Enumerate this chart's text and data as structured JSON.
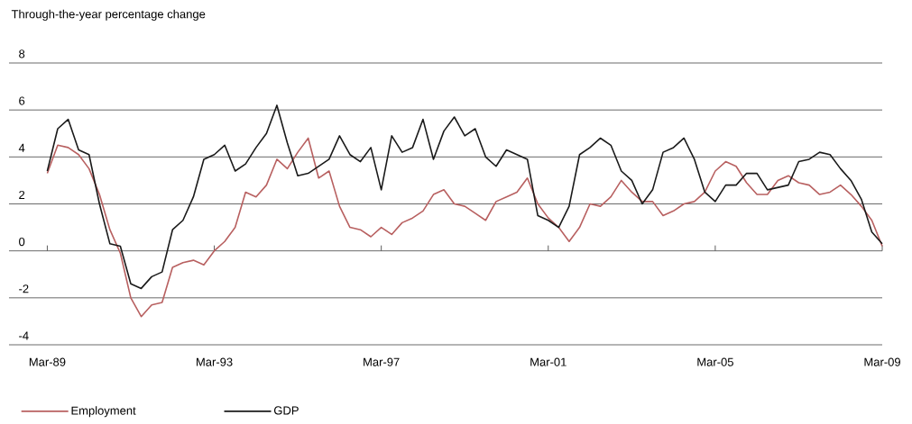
{
  "chart_data": {
    "type": "line",
    "ylabel": "Through-the-year percentage change",
    "x": [
      "1989-03",
      "1989-06",
      "1989-09",
      "1989-12",
      "1990-03",
      "1990-06",
      "1990-09",
      "1990-12",
      "1991-03",
      "1991-06",
      "1991-09",
      "1991-12",
      "1992-03",
      "1992-06",
      "1992-09",
      "1992-12",
      "1993-03",
      "1993-06",
      "1993-09",
      "1993-12",
      "1994-03",
      "1994-06",
      "1994-09",
      "1994-12",
      "1995-03",
      "1995-06",
      "1995-09",
      "1995-12",
      "1996-03",
      "1996-06",
      "1996-09",
      "1996-12",
      "1997-03",
      "1997-06",
      "1997-09",
      "1997-12",
      "1998-03",
      "1998-06",
      "1998-09",
      "1998-12",
      "1999-03",
      "1999-06",
      "1999-09",
      "1999-12",
      "2000-03",
      "2000-06",
      "2000-09",
      "2000-12",
      "2001-03",
      "2001-06",
      "2001-09",
      "2001-12",
      "2002-03",
      "2002-06",
      "2002-09",
      "2002-12",
      "2003-03",
      "2003-06",
      "2003-09",
      "2003-12",
      "2004-03",
      "2004-06",
      "2004-09",
      "2004-12",
      "2005-03",
      "2005-06",
      "2005-09",
      "2005-12",
      "2006-03",
      "2006-06",
      "2006-09",
      "2006-12",
      "2007-03",
      "2007-06",
      "2007-09",
      "2007-12",
      "2008-03",
      "2008-06",
      "2008-09",
      "2008-12",
      "2009-03"
    ],
    "series": [
      {
        "name": "Employment",
        "color": "#b86060",
        "values": [
          3.3,
          4.5,
          4.4,
          4.1,
          3.5,
          2.4,
          0.9,
          -0.1,
          -2.0,
          -2.8,
          -2.3,
          -2.2,
          -0.7,
          -0.5,
          -0.4,
          -0.6,
          0.0,
          0.4,
          1.0,
          2.5,
          2.3,
          2.8,
          3.9,
          3.5,
          4.2,
          4.8,
          3.1,
          3.4,
          1.9,
          1.0,
          0.9,
          0.6,
          1.0,
          0.7,
          1.2,
          1.4,
          1.7,
          2.4,
          2.6,
          2.0,
          1.9,
          1.6,
          1.3,
          2.1,
          2.3,
          2.5,
          3.1,
          2.0,
          1.4,
          1.0,
          0.4,
          1.0,
          2.0,
          1.9,
          2.3,
          3.0,
          2.5,
          2.1,
          2.1,
          1.5,
          1.7,
          2.0,
          2.1,
          2.5,
          3.4,
          3.8,
          3.6,
          2.9,
          2.4,
          2.4,
          3.0,
          3.2,
          2.9,
          2.8,
          2.4,
          2.5,
          2.8,
          2.4,
          1.9,
          1.3,
          0.2
        ]
      },
      {
        "name": "GDP",
        "color": "#1a1a1a",
        "values": [
          3.4,
          5.2,
          5.6,
          4.3,
          4.1,
          2.0,
          0.3,
          0.2,
          -1.4,
          -1.6,
          -1.1,
          -0.9,
          0.9,
          1.3,
          2.3,
          3.9,
          4.1,
          4.5,
          3.4,
          3.7,
          4.4,
          5.0,
          6.2,
          4.6,
          3.2,
          3.3,
          3.6,
          3.9,
          4.9,
          4.1,
          3.8,
          4.4,
          2.6,
          4.9,
          4.2,
          4.4,
          5.6,
          3.9,
          5.1,
          5.7,
          4.9,
          5.2,
          4.0,
          3.6,
          4.3,
          4.1,
          3.9,
          1.5,
          1.3,
          1.0,
          1.9,
          4.1,
          4.4,
          4.8,
          4.5,
          3.4,
          3.0,
          2.0,
          2.6,
          4.2,
          4.4,
          4.8,
          3.9,
          2.5,
          2.1,
          2.8,
          2.8,
          3.3,
          3.3,
          2.6,
          2.7,
          2.8,
          3.8,
          3.9,
          4.2,
          4.1,
          3.5,
          3.0,
          2.2,
          0.8,
          0.3
        ]
      }
    ],
    "xlim": [
      "1988-04",
      "2009-03"
    ],
    "xticks": [
      {
        "value": "1989-03",
        "label": "Mar-89"
      },
      {
        "value": "1993-03",
        "label": "Mar-93"
      },
      {
        "value": "1997-03",
        "label": "Mar-97"
      },
      {
        "value": "2001-03",
        "label": "Mar-01"
      },
      {
        "value": "2005-03",
        "label": "Mar-05"
      },
      {
        "value": "2009-03",
        "label": "Mar-09"
      }
    ],
    "ylim": [
      -4,
      8
    ],
    "yticks": [
      -4,
      -2,
      0,
      2,
      4,
      6,
      8
    ],
    "grid": "y",
    "legend": "bottom",
    "marker": "none",
    "line_style": "solid"
  }
}
